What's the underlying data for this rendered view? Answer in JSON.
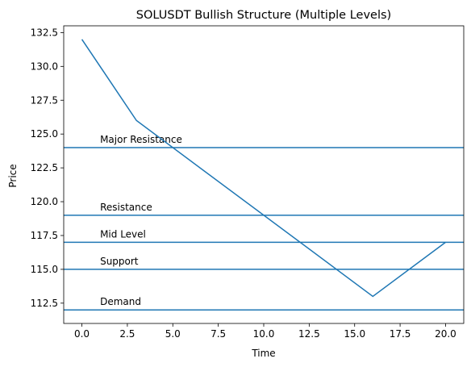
{
  "chart_data": {
    "type": "line",
    "title": "SOLUSDT Bullish Structure (Multiple Levels)",
    "xlabel": "Time",
    "ylabel": "Price",
    "xlim": [
      -1,
      21
    ],
    "ylim": [
      111.0,
      133.0
    ],
    "x_ticks": [
      0,
      2.5,
      5,
      7.5,
      10,
      12.5,
      15,
      17.5,
      20
    ],
    "x_tick_labels": [
      "0.0",
      "2.5",
      "5.0",
      "7.5",
      "10.0",
      "12.5",
      "15.0",
      "17.5",
      "20.0"
    ],
    "y_ticks": [
      112.5,
      115,
      117.5,
      120,
      122.5,
      125,
      127.5,
      130,
      132.5
    ],
    "y_tick_labels": [
      "112.5",
      "115.0",
      "117.5",
      "120.0",
      "122.5",
      "125.0",
      "127.5",
      "130.0",
      "132.5"
    ],
    "grid": false,
    "series": [
      {
        "x": [
          0,
          3,
          16,
          20
        ],
        "values": [
          132,
          126,
          113,
          117
        ],
        "color": "#1f77b4"
      }
    ],
    "levels": [
      {
        "label": "Major Resistance",
        "value": 124,
        "label_x": 1,
        "color": "#1f77b4"
      },
      {
        "label": "Resistance",
        "value": 119,
        "label_x": 1,
        "color": "#1f77b4"
      },
      {
        "label": "Mid Level",
        "value": 117,
        "label_x": 1,
        "color": "#1f77b4"
      },
      {
        "label": "Support",
        "value": 115,
        "label_x": 1,
        "color": "#1f77b4"
      },
      {
        "label": "Demand",
        "value": 112,
        "label_x": 1,
        "color": "#1f77b4"
      }
    ]
  }
}
